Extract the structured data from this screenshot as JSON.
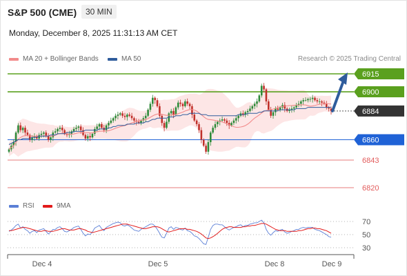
{
  "header": {
    "instrument": "S&P 500 (CME)",
    "timeframe": "30 MIN",
    "datetime": "Monday, December 8, 2025 11:31:13 AM CET"
  },
  "legend_main": [
    {
      "label": "MA 20 + Bollinger Bands",
      "color": "#f28b8b"
    },
    {
      "label": "MA 50",
      "color": "#2f5c9c"
    }
  ],
  "legend_rsi": [
    {
      "label": "RSI",
      "color": "#5b7fd6"
    },
    {
      "label": "9MA",
      "color": "#e21b1b"
    }
  ],
  "credit": "Research © 2025 Trading Central",
  "chart_data": [
    {
      "type": "candlestick",
      "x_labels": [
        "Dec 4",
        "Dec 5",
        "Dec 8",
        "Dec 9"
      ],
      "ylim": [
        6810,
        6925
      ],
      "levels": [
        {
          "value": 6915,
          "label": "6915",
          "role": "target",
          "color": "#5aa01e"
        },
        {
          "value": 6900,
          "label": "6900",
          "role": "resistance",
          "color": "#5aa01e"
        },
        {
          "value": 6884,
          "label": "6884",
          "role": "last",
          "color": "#333333"
        },
        {
          "value": 6860,
          "label": "6860",
          "role": "pivot",
          "color": "#1f62d6"
        },
        {
          "value": 6843,
          "label": "6843",
          "role": "support",
          "color": "#e25b5b"
        },
        {
          "value": 6820,
          "label": "6820",
          "role": "support",
          "color": "#e25b5b"
        }
      ],
      "closes": [
        6852,
        6855,
        6858,
        6866,
        6872,
        6868,
        6870,
        6866,
        6864,
        6860,
        6862,
        6863,
        6861,
        6864,
        6865,
        6866,
        6863,
        6860,
        6862,
        6866,
        6867,
        6869,
        6870,
        6868,
        6865,
        6864,
        6865,
        6867,
        6869,
        6870,
        6871,
        6868,
        6864,
        6861,
        6863,
        6862,
        6865,
        6869,
        6871,
        6873,
        6870,
        6868,
        6872,
        6874,
        6876,
        6878,
        6880,
        6881,
        6882,
        6880,
        6879,
        6881,
        6880,
        6878,
        6876,
        6875,
        6874,
        6876,
        6878,
        6880,
        6885,
        6890,
        6895,
        6893,
        6888,
        6880,
        6874,
        6870,
        6875,
        6882,
        6884,
        6881,
        6887,
        6891,
        6890,
        6888,
        6892,
        6890,
        6888,
        6881,
        6876,
        6873,
        6868,
        6860,
        6855,
        6850,
        6858,
        6866,
        6870,
        6873,
        6875,
        6876,
        6877,
        6876,
        6874,
        6872,
        6874,
        6876,
        6878,
        6880,
        6882,
        6881,
        6883,
        6884,
        6886,
        6888,
        6890,
        6892,
        6897,
        6905,
        6902,
        6892,
        6885,
        6880,
        6883,
        6886,
        6885,
        6887,
        6889,
        6886,
        6884,
        6885,
        6886,
        6887,
        6889,
        6890,
        6892,
        6893,
        6893,
        6894,
        6894,
        6895,
        6893,
        6892,
        6892,
        6891,
        6890,
        6887,
        6886,
        6884
      ],
      "ma50": [
        6856,
        6857,
        6858,
        6859,
        6860,
        6860,
        6861,
        6861,
        6861,
        6861,
        6862,
        6862,
        6862,
        6863,
        6863,
        6863,
        6863,
        6863,
        6864,
        6864,
        6864,
        6865,
        6865,
        6865,
        6865,
        6866,
        6866,
        6866,
        6867,
        6867,
        6867,
        6867,
        6867,
        6868,
        6868,
        6868,
        6868,
        6868,
        6868,
        6869,
        6869,
        6869,
        6869,
        6870,
        6870,
        6871,
        6871,
        6872,
        6872,
        6872,
        6872,
        6873,
        6873,
        6873,
        6873,
        6874,
        6874,
        6874,
        6874,
        6875,
        6875,
        6876,
        6877,
        6877,
        6878,
        6878,
        6878,
        6878,
        6878,
        6879,
        6879,
        6879,
        6880,
        6880,
        6880,
        6881,
        6881,
        6881,
        6882,
        6882,
        6882,
        6882,
        6882,
        6881,
        6881,
        6881,
        6880,
        6880,
        6880,
        6880,
        6880,
        6880,
        6880,
        6880,
        6880,
        6880,
        6880,
        6880,
        6880,
        6881,
        6881,
        6881,
        6881,
        6882,
        6882,
        6882,
        6882,
        6882,
        6883,
        6883,
        6884,
        6884,
        6884,
        6884,
        6884,
        6884,
        6884,
        6885,
        6885,
        6885,
        6885,
        6885,
        6885,
        6885,
        6886,
        6886,
        6886,
        6886,
        6886,
        6887,
        6887,
        6887,
        6887,
        6887,
        6887,
        6887,
        6887,
        6887,
        6887,
        6887
      ],
      "arrow": {
        "from_value": 6884,
        "to_value": 6915,
        "direction": "up"
      }
    },
    {
      "type": "line",
      "name": "RSI",
      "ylim": [
        25,
        75
      ],
      "y_ticks": [
        70,
        50,
        30
      ],
      "rsi": [
        55,
        57,
        60,
        64,
        66,
        60,
        62,
        58,
        56,
        52,
        55,
        56,
        53,
        57,
        58,
        59,
        55,
        51,
        54,
        58,
        58,
        61,
        62,
        59,
        55,
        54,
        56,
        58,
        61,
        62,
        63,
        58,
        52,
        48,
        51,
        50,
        54,
        60,
        62,
        64,
        59,
        56,
        61,
        63,
        65,
        67,
        68,
        69,
        68,
        64,
        63,
        65,
        63,
        60,
        57,
        56,
        55,
        58,
        60,
        62,
        64,
        66,
        66,
        63,
        58,
        52,
        46,
        45,
        52,
        60,
        62,
        58,
        61,
        60,
        58,
        57,
        60,
        56,
        55,
        52,
        48,
        47,
        44,
        40,
        36,
        35,
        46,
        58,
        64,
        66,
        66,
        65,
        65,
        62,
        59,
        57,
        59,
        61,
        62,
        64,
        65,
        62,
        64,
        64,
        66,
        67,
        68,
        68,
        70,
        72,
        68,
        58,
        52,
        49,
        53,
        56,
        55,
        57,
        58,
        54,
        52,
        53,
        55,
        56,
        58,
        58,
        60,
        61,
        60,
        61,
        61,
        61,
        58,
        57,
        56,
        54,
        52,
        50,
        47,
        46
      ],
      "rsi_ma": [
        56,
        56,
        57,
        58,
        59,
        60,
        61,
        61,
        60,
        59,
        58,
        57,
        56,
        55,
        55,
        56,
        56,
        55,
        55,
        55,
        56,
        57,
        58,
        59,
        59,
        58,
        57,
        57,
        57,
        58,
        59,
        59,
        58,
        57,
        55,
        54,
        53,
        54,
        55,
        56,
        57,
        58,
        59,
        60,
        61,
        62,
        63,
        64,
        65,
        66,
        66,
        66,
        65,
        64,
        63,
        62,
        61,
        60,
        59,
        59,
        60,
        61,
        62,
        62,
        62,
        61,
        59,
        57,
        55,
        54,
        55,
        56,
        57,
        58,
        59,
        59,
        59,
        58,
        58,
        57,
        56,
        55,
        53,
        51,
        48,
        45,
        44,
        45,
        47,
        49,
        52,
        55,
        58,
        60,
        61,
        62,
        62,
        61,
        61,
        61,
        61,
        62,
        62,
        63,
        63,
        64,
        64,
        65,
        66,
        67,
        67,
        66,
        64,
        62,
        60,
        58,
        57,
        56,
        56,
        56,
        55,
        55,
        55,
        55,
        55,
        56,
        56,
        57,
        58,
        59,
        59,
        60,
        60,
        59,
        59,
        58,
        57,
        56,
        54,
        52
      ]
    }
  ]
}
